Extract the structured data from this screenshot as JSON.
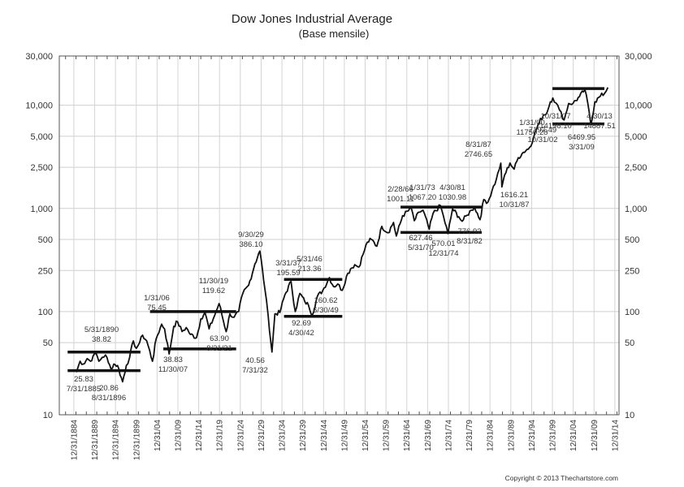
{
  "chart_data": {
    "type": "line",
    "title": "Dow Jones Industrial Average",
    "subtitle": "(Base mensile)",
    "yscale": "log",
    "ylim": [
      10,
      30000
    ],
    "xlim": [
      1881.5,
      2016
    ],
    "grid": true,
    "y_ticks": [
      {
        "value": 30000,
        "label": "30,000"
      },
      {
        "value": 10000,
        "label": "10,000"
      },
      {
        "value": 5000,
        "label": "5,000"
      },
      {
        "value": 2500,
        "label": "2,500"
      },
      {
        "value": 1000,
        "label": "1,000"
      },
      {
        "value": 500,
        "label": "500"
      },
      {
        "value": 250,
        "label": "250"
      },
      {
        "value": 100,
        "label": "100"
      },
      {
        "value": 50,
        "label": "50"
      },
      {
        "value": 10,
        "label": "10"
      }
    ],
    "x_ticks": [
      {
        "value": 1885,
        "label": "12/31/1884"
      },
      {
        "value": 1890,
        "label": "12/31/1889"
      },
      {
        "value": 1895,
        "label": "12/31/1894"
      },
      {
        "value": 1900,
        "label": "12/31/1899"
      },
      {
        "value": 1905,
        "label": "12/31/04"
      },
      {
        "value": 1910,
        "label": "12/31/09"
      },
      {
        "value": 1915,
        "label": "12/31/14"
      },
      {
        "value": 1920,
        "label": "12/31/19"
      },
      {
        "value": 1925,
        "label": "12/31/24"
      },
      {
        "value": 1930,
        "label": "12/31/29"
      },
      {
        "value": 1935,
        "label": "12/31/34"
      },
      {
        "value": 1940,
        "label": "12/31/39"
      },
      {
        "value": 1945,
        "label": "12/31/44"
      },
      {
        "value": 1950,
        "label": "12/31/49"
      },
      {
        "value": 1955,
        "label": "12/31/54"
      },
      {
        "value": 1960,
        "label": "12/31/59"
      },
      {
        "value": 1965,
        "label": "12/31/64"
      },
      {
        "value": 1970,
        "label": "12/31/69"
      },
      {
        "value": 1975,
        "label": "12/31/74"
      },
      {
        "value": 1980,
        "label": "12/31/79"
      },
      {
        "value": 1985,
        "label": "12/31/84"
      },
      {
        "value": 1990,
        "label": "12/31/89"
      },
      {
        "value": 1995,
        "label": "12/31/94"
      },
      {
        "value": 2000,
        "label": "12/31/99"
      },
      {
        "value": 2005,
        "label": "12/31/04"
      },
      {
        "value": 2010,
        "label": "12/31/09"
      },
      {
        "value": 2015,
        "label": "12/31/14"
      }
    ],
    "series": [
      {
        "name": "DJIA",
        "points": [
          [
            1885.6,
            25.83
          ],
          [
            1886.5,
            33
          ],
          [
            1887.3,
            31
          ],
          [
            1888.2,
            35
          ],
          [
            1889.0,
            33
          ],
          [
            1889.6,
            37
          ],
          [
            1890.4,
            38.82
          ],
          [
            1891.0,
            33
          ],
          [
            1891.8,
            36
          ],
          [
            1892.6,
            38
          ],
          [
            1893.3,
            32
          ],
          [
            1893.9,
            28
          ],
          [
            1894.6,
            31
          ],
          [
            1895.5,
            30
          ],
          [
            1896.7,
            20.86
          ],
          [
            1897.6,
            30
          ],
          [
            1898.4,
            36
          ],
          [
            1899.3,
            52
          ],
          [
            1900.0,
            44
          ],
          [
            1900.8,
            50
          ],
          [
            1901.5,
            59
          ],
          [
            1902.5,
            52
          ],
          [
            1903.9,
            33
          ],
          [
            1904.8,
            55
          ],
          [
            1906.1,
            75.45
          ],
          [
            1906.8,
            68
          ],
          [
            1907.9,
            38.83
          ],
          [
            1909.0,
            72
          ],
          [
            1909.9,
            80
          ],
          [
            1911.0,
            64
          ],
          [
            1912.0,
            70
          ],
          [
            1913.0,
            60
          ],
          [
            1914.5,
            56
          ],
          [
            1915.5,
            85
          ],
          [
            1916.5,
            98
          ],
          [
            1917.5,
            68
          ],
          [
            1918.5,
            85
          ],
          [
            1919.9,
            119.62
          ],
          [
            1921.6,
            63.9
          ],
          [
            1922.5,
            95
          ],
          [
            1923.5,
            88
          ],
          [
            1924.6,
            100
          ],
          [
            1925.6,
            150
          ],
          [
            1927.0,
            180
          ],
          [
            1928.5,
            290
          ],
          [
            1929.7,
            386.1
          ],
          [
            1930.3,
            260
          ],
          [
            1930.9,
            165
          ],
          [
            1931.7,
            90
          ],
          [
            1932.6,
            40.56
          ],
          [
            1933.3,
            95
          ],
          [
            1934.5,
            98
          ],
          [
            1935.7,
            145
          ],
          [
            1937.2,
            195.59
          ],
          [
            1938.2,
            100
          ],
          [
            1939.3,
            150
          ],
          [
            1940.5,
            125
          ],
          [
            1941.4,
            115
          ],
          [
            1942.3,
            92.69
          ],
          [
            1943.5,
            140
          ],
          [
            1944.8,
            160
          ],
          [
            1946.4,
            213.36
          ],
          [
            1947.4,
            175
          ],
          [
            1948.4,
            185
          ],
          [
            1949.5,
            160.62
          ],
          [
            1950.5,
            220
          ],
          [
            1951.5,
            260
          ],
          [
            1952.5,
            285
          ],
          [
            1953.5,
            270
          ],
          [
            1954.5,
            360
          ],
          [
            1955.5,
            470
          ],
          [
            1956.5,
            500
          ],
          [
            1957.8,
            430
          ],
          [
            1959.0,
            670
          ],
          [
            1960.5,
            580
          ],
          [
            1961.8,
            730
          ],
          [
            1962.5,
            540
          ],
          [
            1964.0,
            850
          ],
          [
            1966.1,
            1001.11
          ],
          [
            1966.8,
            760
          ],
          [
            1968.0,
            920
          ],
          [
            1968.9,
            960
          ],
          [
            1970.4,
            627.46
          ],
          [
            1971.3,
            890
          ],
          [
            1973.1,
            1067.2
          ],
          [
            1974.9,
            570.01
          ],
          [
            1976.0,
            990
          ],
          [
            1977.5,
            830
          ],
          [
            1978.3,
            750
          ],
          [
            1979.5,
            860
          ],
          [
            1980.5,
            960
          ],
          [
            1981.3,
            1030.98
          ],
          [
            1982.6,
            776.92
          ],
          [
            1983.5,
            1220
          ],
          [
            1984.5,
            1150
          ],
          [
            1985.5,
            1500
          ],
          [
            1986.5,
            1900
          ],
          [
            1987.6,
            2746.65
          ],
          [
            1987.85,
            1616.21
          ],
          [
            1988.5,
            2100
          ],
          [
            1989.8,
            2750
          ],
          [
            1990.8,
            2400
          ],
          [
            1991.8,
            3100
          ],
          [
            1993.0,
            3500
          ],
          [
            1994.5,
            3900
          ],
          [
            1995.5,
            4900
          ],
          [
            1996.5,
            6400
          ],
          [
            1997.8,
            8000
          ],
          [
            1998.7,
            8500
          ],
          [
            1999.5,
            10800
          ],
          [
            2000.1,
            11750.28
          ],
          [
            2000.9,
            10500
          ],
          [
            2001.7,
            9000
          ],
          [
            2002.8,
            7197.49
          ],
          [
            2003.9,
            10400
          ],
          [
            2005.0,
            10500
          ],
          [
            2006.5,
            12100
          ],
          [
            2007.8,
            14198.1
          ],
          [
            2008.8,
            8800
          ],
          [
            2009.25,
            6469.95
          ],
          [
            2010.2,
            10800
          ],
          [
            2011.5,
            12200
          ],
          [
            2012.5,
            13000
          ],
          [
            2013.33,
            14887.51
          ]
        ]
      }
    ],
    "range_lines": [
      {
        "value": 40.5,
        "from": 1883.5,
        "to": 1901.0
      },
      {
        "value": 26.8,
        "from": 1883.5,
        "to": 1901.0
      },
      {
        "value": 100,
        "from": 1903.3,
        "to": 1924.0
      },
      {
        "value": 43.5,
        "from": 1906.5,
        "to": 1924.0
      },
      {
        "value": 205,
        "from": 1935.5,
        "to": 1949.5
      },
      {
        "value": 90,
        "from": 1935.5,
        "to": 1949.5
      },
      {
        "value": 1030,
        "from": 1963.5,
        "to": 1983.0
      },
      {
        "value": 585,
        "from": 1963.5,
        "to": 1983.0
      },
      {
        "value": 14500,
        "from": 2000.0,
        "to": 2017.0
      },
      {
        "value": 6600,
        "from": 2000.0,
        "to": 2017.0
      }
    ],
    "annotations": [
      {
        "date": "5/31/1890",
        "value": "38.82"
      },
      {
        "date": "7/31/1885",
        "value": "25.83"
      },
      {
        "date": "8/31/1896",
        "value": "20.86"
      },
      {
        "date": "1/31/06",
        "value": "75.45"
      },
      {
        "date": "11/30/07",
        "value": "38.83"
      },
      {
        "date": "11/30/19",
        "value": "119.62"
      },
      {
        "date": "8/31/21",
        "value": "63.90"
      },
      {
        "date": "9/30/29",
        "value": "386.10"
      },
      {
        "date": "7/31/32",
        "value": "40.56"
      },
      {
        "date": "3/31/37",
        "value": "195.59"
      },
      {
        "date": "4/30/42",
        "value": "92.69"
      },
      {
        "date": "5/31/46",
        "value": "213.36"
      },
      {
        "date": "6/30/49",
        "value": "160.62"
      },
      {
        "date": "2/28/66",
        "value": "1001.11"
      },
      {
        "date": "5/31/70",
        "value": "627.46"
      },
      {
        "date": "1/31/73",
        "value": "1067.20"
      },
      {
        "date": "12/31/74",
        "value": "570.01"
      },
      {
        "date": "4/30/81",
        "value": "1030.98"
      },
      {
        "date": "8/31/82",
        "value": "776.92"
      },
      {
        "date": "8/31/87",
        "value": "2746.65"
      },
      {
        "date": "10/31/87",
        "value": "1616.21"
      },
      {
        "date": "1/31/00",
        "value": "11750.28"
      },
      {
        "date": "10/31/02",
        "value": "7197.49"
      },
      {
        "date": "10/31/07",
        "value": "14198.10"
      },
      {
        "date": "3/31/09",
        "value": "6469.95"
      },
      {
        "date": "4/30/13",
        "value": "14887.51"
      }
    ],
    "copyright": "Copyright © 2013 Thechartstore.com"
  }
}
